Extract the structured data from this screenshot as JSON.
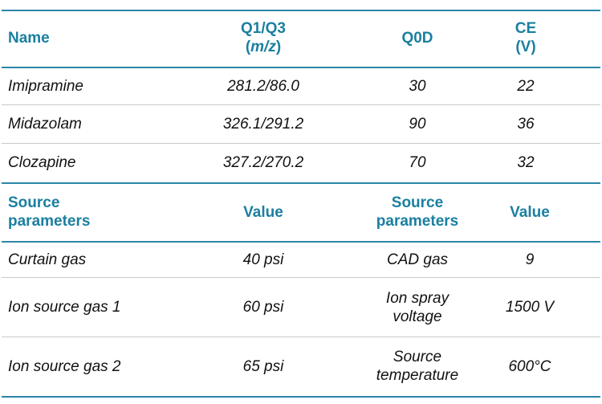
{
  "table1": {
    "headers": {
      "name": "Name",
      "q1q3_line1": "Q1/Q3",
      "q1q3_unit_open": "(",
      "q1q3_unit": "m/z",
      "q1q3_unit_close": ")",
      "q0d": "Q0D",
      "ce_line1": "CE",
      "ce_line2": "(V)"
    },
    "rows": [
      {
        "name": "Imipramine",
        "q1q3": "281.2/86.0",
        "q0d": "30",
        "ce": "22"
      },
      {
        "name": "Midazolam",
        "q1q3": "326.1/291.2",
        "q0d": "90",
        "ce": "36"
      },
      {
        "name": "Clozapine",
        "q1q3": "327.2/270.2",
        "q0d": "70",
        "ce": "32"
      }
    ]
  },
  "table2": {
    "headers": {
      "param1_line1": "Source",
      "param1_line2": "parameters",
      "value1": "Value",
      "param2_line1": "Source",
      "param2_line2": "parameters",
      "value2": "Value"
    },
    "rows": [
      {
        "param1": "Curtain gas",
        "value1": "40 psi",
        "param2_line1": "CAD gas",
        "param2_line2": "",
        "value2": "9"
      },
      {
        "param1": "Ion source gas 1",
        "value1": "60 psi",
        "param2_line1": "Ion spray",
        "param2_line2": "voltage",
        "value2": "1500 V"
      },
      {
        "param1": "Ion source gas 2",
        "value1": "65 psi",
        "param2_line1": "Source",
        "param2_line2": "temperature",
        "value2": "600°C"
      }
    ]
  },
  "colors": {
    "header_text": "#1a7fa0",
    "rule": "#2a86a6",
    "divider": "#c9c9c9",
    "body_text": "#111111"
  }
}
